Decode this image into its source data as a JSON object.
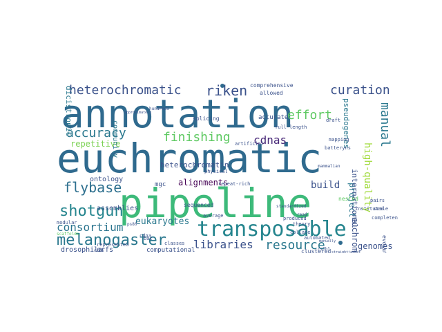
{
  "words": [
    {
      "text": "annotation",
      "color": "#2f6a8e"
    },
    {
      "text": "euchromatic",
      "color": "#2f6a8e"
    },
    {
      "text": "pipeline",
      "color": "#3dba7a"
    },
    {
      "text": "transposable",
      "color": "#25858e"
    },
    {
      "text": "melanogaster",
      "color": "#2a788e"
    },
    {
      "text": "shotgun",
      "color": "#25858e"
    },
    {
      "text": "flybase",
      "color": "#2d6f8e"
    },
    {
      "text": "consortium",
      "color": "#2b748e"
    },
    {
      "text": "heterochromatic",
      "color": "#3b528b"
    },
    {
      "text": "riken",
      "color": "#3b528b"
    },
    {
      "text": "curation",
      "color": "#3b528b"
    },
    {
      "text": "accuracy",
      "color": "#2a788e"
    },
    {
      "text": "finishing",
      "color": "#5ec962"
    },
    {
      "text": "effort",
      "color": "#5ec962"
    },
    {
      "text": "cdnas",
      "color": "#482878"
    },
    {
      "text": "manual",
      "color": "#2a788e"
    },
    {
      "text": "libraries",
      "color": "#3b528b"
    },
    {
      "text": "resource",
      "color": "#2a788e"
    },
    {
      "text": "repetitive",
      "color": "#7ad151"
    },
    {
      "text": "eukaryotes",
      "color": "#2a788e"
    },
    {
      "text": "high-quality",
      "color": "#a0da39"
    },
    {
      "text": "euchromatin",
      "color": "#3b528b"
    },
    {
      "text": "genomes",
      "color": "#3b528b"
    },
    {
      "text": "project",
      "color": "#2a788e"
    },
    {
      "text": "international",
      "color": "#3b528b"
    },
    {
      "text": "build",
      "color": "#3b528b"
    },
    {
      "text": "alignments",
      "color": "#440154"
    },
    {
      "text": "pseudogenes",
      "color": "#2a788e"
    },
    {
      "text": "dicistronic",
      "color": "#2a788e"
    },
    {
      "text": "heterochromatin",
      "color": "#3b528b"
    },
    {
      "text": "community",
      "color": "#2a788e"
    },
    {
      "text": "ontology",
      "color": "#3b528b"
    },
    {
      "text": "assemblies",
      "color": "#3b528b"
    },
    {
      "text": "drosophila",
      "color": "#3b528b"
    },
    {
      "text": "orfs",
      "color": "#3b528b"
    },
    {
      "text": "computational",
      "color": "#3b528b"
    },
    {
      "text": "clustered",
      "color": "#3b528b"
    },
    {
      "text": "evolutionary",
      "color": "#3b528b"
    },
    {
      "text": "comprehensive",
      "color": "#3b528b"
    },
    {
      "text": "allowed",
      "color": "#3b528b"
    },
    {
      "text": "accurate",
      "color": "#3b528b"
    },
    {
      "text": "splicing",
      "color": "#3b528b"
    },
    {
      "text": "mgc",
      "color": "#3b528b"
    },
    {
      "text": "sequenced",
      "color": "#3b528b"
    },
    {
      "text": "represented",
      "color": "#3b528b"
    },
    {
      "text": "modular",
      "color": "#3b528b"
    },
    {
      "text": "cdna",
      "color": "#3b528b"
    },
    {
      "text": "classes",
      "color": "#3b528b"
    },
    {
      "text": "produced",
      "color": "#3b528b"
    },
    {
      "text": "automated",
      "color": "#3b528b"
    },
    {
      "text": "collate",
      "color": "#3b528b"
    },
    {
      "text": "theory",
      "color": "#3b528b"
    },
    {
      "text": "institutes",
      "color": "#3b528b"
    },
    {
      "text": "completeness",
      "color": "#3b528b"
    },
    {
      "text": "nested",
      "color": "#5ec962"
    },
    {
      "text": "mapping",
      "color": "#3b528b"
    },
    {
      "text": "draft",
      "color": "#3b528b"
    },
    {
      "text": "full-length",
      "color": "#3b528b"
    },
    {
      "text": "artificial",
      "color": "#3b528b"
    },
    {
      "text": "bac",
      "color": "#3b528b"
    },
    {
      "text": "average",
      "color": "#3b528b"
    },
    {
      "text": "physical",
      "color": "#3b528b"
    },
    {
      "text": "repeat-rich",
      "color": "#3b528b"
    },
    {
      "text": "scale",
      "color": "#3b528b"
    },
    {
      "text": "pairs",
      "color": "#3b528b"
    },
    {
      "text": "batteryns",
      "color": "#3b528b"
    },
    {
      "text": "mammalian",
      "color": "#3b528b"
    },
    {
      "text": "standardized",
      "color": "#3b528b"
    },
    {
      "text": "scaffolds",
      "color": "#5ec962"
    },
    {
      "text": "hundreds",
      "color": "#3b528b"
    },
    {
      "text": "approximately",
      "color": "#3b528b"
    },
    {
      "text": "orfs",
      "color": "#3b528b"
    },
    {
      "text": "read",
      "color": "#3b528b"
    },
    {
      "text": "ps80",
      "color": "#3b528b"
    },
    {
      "text": "cs7bl",
      "color": "#3b528b"
    },
    {
      "text": "straightjacket",
      "color": "#3b528b"
    },
    {
      "text": "manually",
      "color": "#3b528b"
    }
  ]
}
